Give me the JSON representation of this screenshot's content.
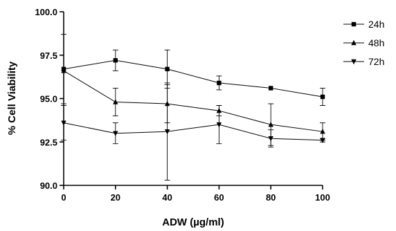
{
  "chart_data": {
    "type": "line",
    "title": "",
    "xlabel": "ADW (µg/ml)",
    "ylabel": "% Cell Viability",
    "xlim": [
      0,
      100
    ],
    "ylim": [
      90.0,
      100.0
    ],
    "x": [
      0,
      20,
      40,
      60,
      80,
      100
    ],
    "xticks": [
      "0",
      "20",
      "40",
      "60",
      "80",
      "100"
    ],
    "yticks": [
      "90.0",
      "92.5",
      "95.0",
      "97.5",
      "100.0"
    ],
    "yticks_values": [
      90.0,
      92.5,
      95.0,
      97.5,
      100.0
    ],
    "legend_position": "top-right",
    "grid": false,
    "series": [
      {
        "name": "24h",
        "marker": "square",
        "values": [
          96.7,
          97.2,
          96.7,
          95.9,
          95.6,
          95.1
        ],
        "error": [
          2.0,
          0.6,
          1.1,
          0.4,
          0.0,
          0.5
        ]
      },
      {
        "name": "48h",
        "marker": "triangle-up",
        "values": [
          96.6,
          94.8,
          94.7,
          94.3,
          93.5,
          93.1
        ],
        "error": [
          0.0,
          0.8,
          1.1,
          0.3,
          1.2,
          0.5
        ]
      },
      {
        "name": "72h",
        "marker": "triangle-down",
        "values": [
          93.6,
          93.0,
          93.1,
          93.5,
          92.7,
          92.6
        ],
        "error": [
          1.0,
          0.6,
          2.8,
          1.1,
          0.5,
          0.1
        ]
      }
    ]
  }
}
